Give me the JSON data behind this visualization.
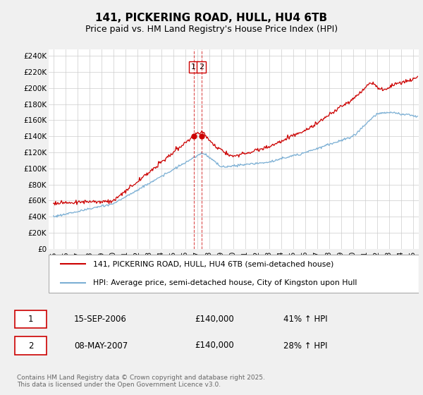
{
  "title": "141, PICKERING ROAD, HULL, HU4 6TB",
  "subtitle": "Price paid vs. HM Land Registry's House Price Index (HPI)",
  "ylabel_ticks": [
    "£0",
    "£20K",
    "£40K",
    "£60K",
    "£80K",
    "£100K",
    "£120K",
    "£140K",
    "£160K",
    "£180K",
    "£200K",
    "£220K",
    "£240K"
  ],
  "ytick_values": [
    0,
    20000,
    40000,
    60000,
    80000,
    100000,
    120000,
    140000,
    160000,
    180000,
    200000,
    220000,
    240000
  ],
  "ylim": [
    0,
    248000
  ],
  "xlim_start": 1994.6,
  "xlim_end": 2025.5,
  "xticks": [
    1995,
    1996,
    1997,
    1998,
    1999,
    2000,
    2001,
    2002,
    2003,
    2004,
    2005,
    2006,
    2007,
    2008,
    2009,
    2010,
    2011,
    2012,
    2013,
    2014,
    2015,
    2016,
    2017,
    2018,
    2019,
    2020,
    2021,
    2022,
    2023,
    2024,
    2025
  ],
  "red_line_color": "#cc0000",
  "blue_line_color": "#7bafd4",
  "vline1_x": 2006.71,
  "vline2_x": 2007.36,
  "vline_color": "#cc0000",
  "marker1_x": 2006.71,
  "marker1_y": 140000,
  "marker2_x": 2007.36,
  "marker2_y": 140000,
  "sale1_label": "1",
  "sale2_label": "2",
  "legend_red": "141, PICKERING ROAD, HULL, HU4 6TB (semi-detached house)",
  "legend_blue": "HPI: Average price, semi-detached house, City of Kingston upon Hull",
  "table_rows": [
    {
      "num": "1",
      "date": "15-SEP-2006",
      "price": "£140,000",
      "hpi": "41% ↑ HPI"
    },
    {
      "num": "2",
      "date": "08-MAY-2007",
      "price": "£140,000",
      "hpi": "28% ↑ HPI"
    }
  ],
  "footer": "Contains HM Land Registry data © Crown copyright and database right 2025.\nThis data is licensed under the Open Government Licence v3.0.",
  "background_color": "#f0f0f0",
  "plot_bg_color": "#ffffff",
  "grid_color": "#cccccc",
  "title_fontsize": 11,
  "subtitle_fontsize": 9,
  "tick_fontsize": 7.5
}
